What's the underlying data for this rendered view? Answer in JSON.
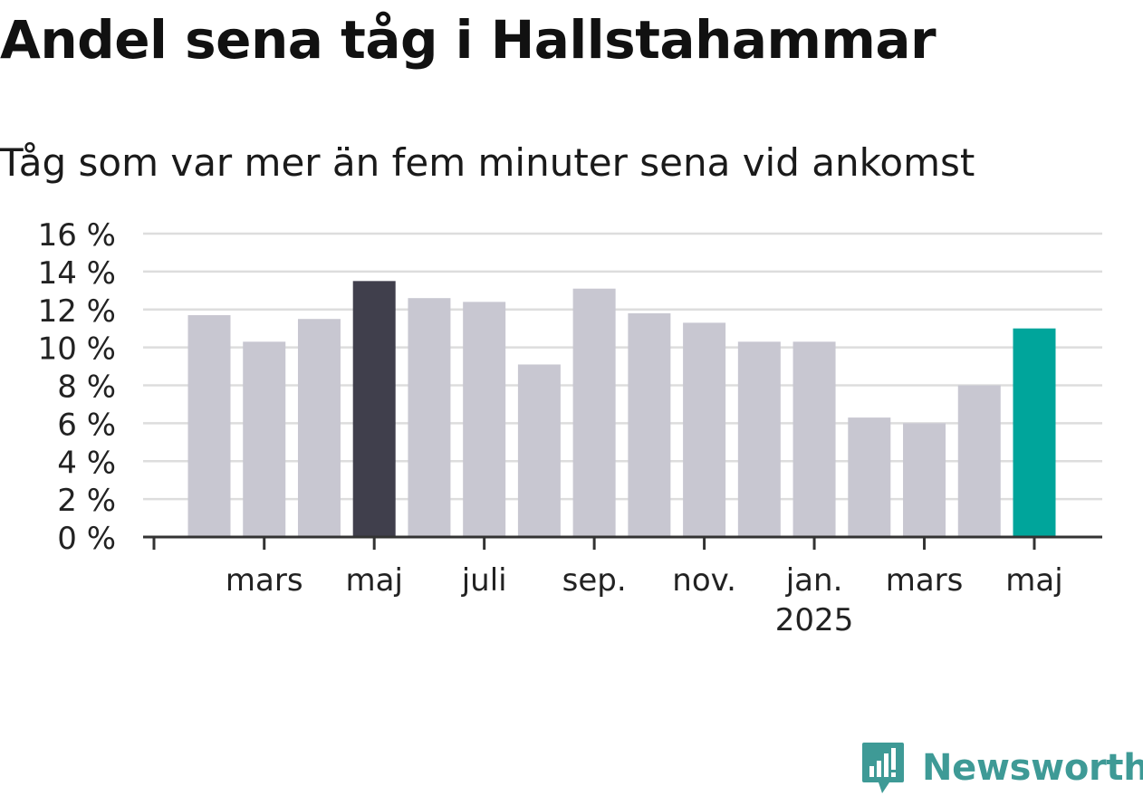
{
  "title": "Andel sena tåg i Hallstahammar",
  "subtitle": "Tåg som var mer än fem minuter sena vid ankomst",
  "brand": {
    "name": "Newsworthy",
    "color": "#3e9a96",
    "icon": "newsworthy-logo-icon"
  },
  "colors": {
    "bar": "#c8c7d1",
    "highlight_dark": "#403f4c",
    "highlight_teal": "#00a59b",
    "grid": "#dddddd",
    "axis": "#333333"
  },
  "chart_data": {
    "type": "bar",
    "title": "Andel sena tåg i Hallstahammar",
    "subtitle": "Tåg som var mer än fem minuter sena vid ankomst",
    "categories": [
      "2024-02",
      "2024-03",
      "2024-04",
      "2024-05",
      "2024-06",
      "2024-07",
      "2024-08",
      "2024-09",
      "2024-10",
      "2024-11",
      "2024-12",
      "2025-01",
      "2025-02",
      "2025-03",
      "2025-04",
      "2025-05"
    ],
    "values": [
      11.7,
      10.3,
      11.5,
      13.5,
      12.6,
      12.4,
      9.1,
      13.1,
      11.8,
      11.3,
      10.3,
      10.3,
      6.3,
      6.0,
      8.0,
      11.0
    ],
    "highlight": {
      "2024-05": "dark",
      "2025-05": "teal"
    },
    "yticks": [
      0,
      2,
      4,
      6,
      8,
      10,
      12,
      14,
      16
    ],
    "ytick_suffix": " %",
    "ylim": [
      0,
      16
    ],
    "xticks": [
      {
        "label": "mars",
        "year": ""
      },
      {
        "label": "maj",
        "year": ""
      },
      {
        "label": "juli",
        "year": ""
      },
      {
        "label": "sep.",
        "year": ""
      },
      {
        "label": "nov.",
        "year": ""
      },
      {
        "label": "jan.",
        "year": "2025"
      },
      {
        "label": "mars",
        "year": ""
      },
      {
        "label": "maj",
        "year": ""
      }
    ],
    "xlabel": "",
    "ylabel": "",
    "grid": true,
    "legend": "none"
  }
}
